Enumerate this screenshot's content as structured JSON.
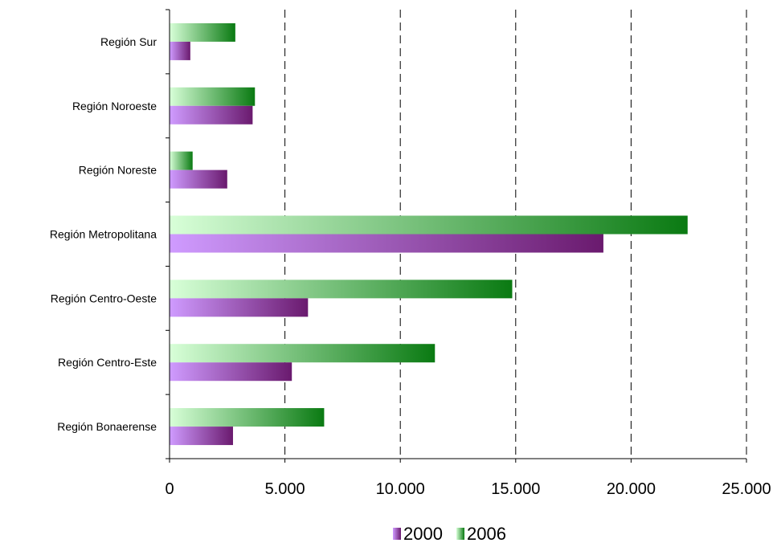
{
  "chart_data": {
    "type": "bar",
    "orientation": "horizontal",
    "categories": [
      "Región Sur",
      "Región Noroeste",
      "Región Noreste",
      "Región Metropolitana",
      "Región Centro-Oeste",
      "Región Centro-Este",
      "Región Bonaerense"
    ],
    "series": [
      {
        "name": "2000",
        "values": [
          900,
          3600,
          2500,
          18800,
          6000,
          5300,
          2750
        ],
        "color": "#6a1a6e",
        "color_light": "#cf9bff"
      },
      {
        "name": "2006",
        "values": [
          2850,
          3700,
          1000,
          22450,
          14850,
          11500,
          6700
        ],
        "color": "#0a7a12",
        "color_light": "#d8ffd8"
      }
    ],
    "xlim": [
      0,
      25000
    ],
    "xticks": [
      0,
      5000,
      10000,
      15000,
      20000,
      25000
    ],
    "xtick_labels": [
      "0",
      "5.000",
      "10.000",
      "15.000",
      "20.000",
      "25.000"
    ],
    "title": "",
    "xlabel": "",
    "ylabel": "",
    "grid": "vertical dashed",
    "legend_position": "bottom"
  }
}
